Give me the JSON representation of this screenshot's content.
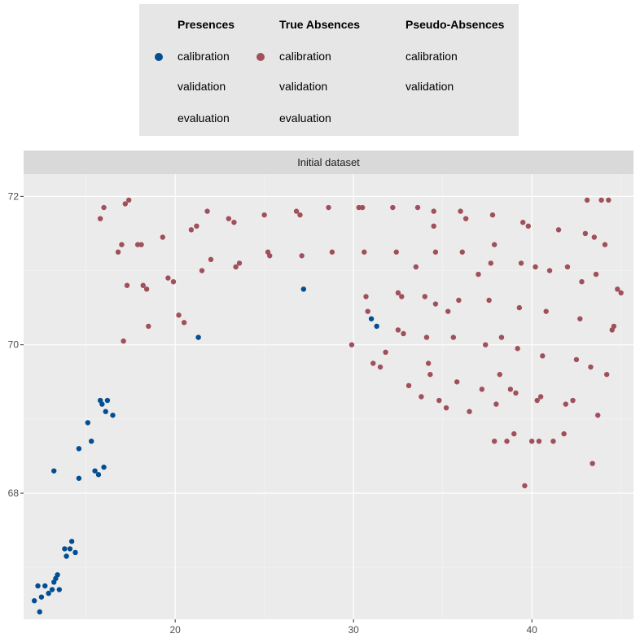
{
  "legend": {
    "groups": [
      {
        "title": "Presences",
        "labels": [
          "calibration",
          "validation",
          "evaluation"
        ],
        "key_color": "#034E91"
      },
      {
        "title": "True Absences",
        "labels": [
          "calibration",
          "validation",
          "evaluation"
        ],
        "key_color": "#A0505A"
      },
      {
        "title": "Pseudo-Absences",
        "labels": [
          "calibration",
          "validation"
        ],
        "key_color": null
      }
    ]
  },
  "chart_data": {
    "type": "scatter",
    "panel_title": "Initial dataset",
    "xlim": [
      11.5,
      45.7
    ],
    "ylim": [
      66.3,
      72.3
    ],
    "x_ticks": [
      20,
      30,
      40
    ],
    "y_ticks": [
      68,
      70,
      72
    ],
    "grid": true,
    "legend_position": "top",
    "series": [
      {
        "name": "Presences calibration",
        "color": "#034E91",
        "points": [
          [
            12.1,
            66.55
          ],
          [
            12.3,
            66.75
          ],
          [
            12.4,
            66.4
          ],
          [
            12.5,
            66.6
          ],
          [
            12.7,
            66.75
          ],
          [
            12.9,
            66.65
          ],
          [
            13.1,
            66.7
          ],
          [
            13.2,
            66.8
          ],
          [
            13.3,
            66.85
          ],
          [
            13.4,
            66.9
          ],
          [
            13.5,
            66.7
          ],
          [
            13.2,
            68.3
          ],
          [
            13.8,
            67.25
          ],
          [
            13.9,
            67.15
          ],
          [
            14.1,
            67.25
          ],
          [
            14.2,
            67.35
          ],
          [
            14.4,
            67.2
          ],
          [
            14.6,
            68.2
          ],
          [
            14.6,
            68.6
          ],
          [
            15.1,
            68.95
          ],
          [
            15.3,
            68.7
          ],
          [
            15.5,
            68.3
          ],
          [
            15.7,
            68.25
          ],
          [
            15.8,
            69.25
          ],
          [
            15.9,
            69.2
          ],
          [
            16.0,
            68.35
          ],
          [
            16.1,
            69.1
          ],
          [
            16.2,
            69.25
          ],
          [
            16.5,
            69.05
          ],
          [
            21.3,
            70.1
          ],
          [
            27.2,
            70.75
          ],
          [
            31.0,
            70.35
          ],
          [
            31.3,
            70.25
          ]
        ]
      },
      {
        "name": "True Absences calibration",
        "color": "#A0505A",
        "points": [
          [
            15.8,
            71.7
          ],
          [
            16.0,
            71.85
          ],
          [
            16.8,
            71.25
          ],
          [
            17.0,
            71.35
          ],
          [
            17.1,
            70.05
          ],
          [
            17.2,
            71.9
          ],
          [
            17.3,
            70.8
          ],
          [
            17.4,
            71.95
          ],
          [
            17.9,
            71.35
          ],
          [
            18.1,
            71.35
          ],
          [
            18.2,
            70.8
          ],
          [
            18.4,
            70.75
          ],
          [
            18.5,
            70.25
          ],
          [
            19.3,
            71.45
          ],
          [
            19.6,
            70.9
          ],
          [
            19.9,
            70.85
          ],
          [
            20.2,
            70.4
          ],
          [
            20.5,
            70.3
          ],
          [
            20.9,
            71.55
          ],
          [
            21.2,
            71.6
          ],
          [
            21.5,
            71.0
          ],
          [
            21.8,
            71.8
          ],
          [
            22.0,
            71.15
          ],
          [
            23.0,
            71.7
          ],
          [
            23.3,
            71.65
          ],
          [
            23.4,
            71.05
          ],
          [
            23.6,
            71.1
          ],
          [
            25.0,
            71.75
          ],
          [
            25.2,
            71.25
          ],
          [
            25.3,
            71.2
          ],
          [
            26.8,
            71.8
          ],
          [
            27.0,
            71.75
          ],
          [
            27.1,
            71.2
          ],
          [
            28.6,
            71.85
          ],
          [
            28.8,
            71.25
          ],
          [
            29.9,
            70.0
          ],
          [
            30.3,
            71.85
          ],
          [
            30.5,
            71.85
          ],
          [
            30.6,
            71.25
          ],
          [
            30.7,
            70.65
          ],
          [
            30.8,
            70.45
          ],
          [
            31.1,
            69.75
          ],
          [
            31.5,
            69.7
          ],
          [
            31.8,
            69.9
          ],
          [
            32.2,
            71.85
          ],
          [
            32.4,
            71.25
          ],
          [
            32.5,
            70.7
          ],
          [
            32.5,
            70.2
          ],
          [
            32.7,
            70.65
          ],
          [
            32.8,
            70.15
          ],
          [
            33.1,
            69.45
          ],
          [
            33.5,
            71.05
          ],
          [
            33.6,
            71.85
          ],
          [
            33.8,
            69.3
          ],
          [
            34.0,
            70.65
          ],
          [
            34.1,
            70.1
          ],
          [
            34.2,
            69.75
          ],
          [
            34.3,
            69.6
          ],
          [
            34.5,
            71.8
          ],
          [
            34.6,
            71.25
          ],
          [
            34.5,
            71.6
          ],
          [
            34.6,
            70.55
          ],
          [
            34.8,
            69.25
          ],
          [
            35.2,
            69.15
          ],
          [
            35.3,
            70.45
          ],
          [
            35.6,
            70.1
          ],
          [
            35.8,
            69.5
          ],
          [
            35.9,
            70.6
          ],
          [
            36.0,
            71.8
          ],
          [
            36.1,
            71.25
          ],
          [
            36.3,
            71.7
          ],
          [
            36.5,
            69.1
          ],
          [
            37.0,
            70.95
          ],
          [
            37.2,
            69.4
          ],
          [
            37.4,
            70.0
          ],
          [
            37.6,
            70.6
          ],
          [
            37.7,
            71.1
          ],
          [
            37.8,
            71.75
          ],
          [
            37.9,
            68.7
          ],
          [
            37.9,
            71.35
          ],
          [
            38.0,
            69.2
          ],
          [
            38.2,
            69.6
          ],
          [
            38.3,
            70.1
          ],
          [
            38.6,
            68.7
          ],
          [
            38.8,
            69.4
          ],
          [
            39.0,
            68.8
          ],
          [
            39.1,
            69.35
          ],
          [
            39.2,
            69.95
          ],
          [
            39.3,
            70.5
          ],
          [
            39.4,
            71.1
          ],
          [
            39.5,
            71.65
          ],
          [
            39.6,
            68.1
          ],
          [
            39.8,
            71.6
          ],
          [
            40.0,
            68.7
          ],
          [
            40.2,
            71.05
          ],
          [
            40.3,
            69.25
          ],
          [
            40.4,
            68.7
          ],
          [
            40.5,
            69.3
          ],
          [
            40.6,
            69.85
          ],
          [
            40.8,
            70.45
          ],
          [
            41.0,
            71.0
          ],
          [
            41.2,
            68.7
          ],
          [
            41.5,
            71.55
          ],
          [
            41.8,
            68.8
          ],
          [
            41.9,
            69.2
          ],
          [
            42.0,
            71.05
          ],
          [
            42.3,
            69.25
          ],
          [
            42.5,
            69.8
          ],
          [
            42.7,
            70.35
          ],
          [
            42.8,
            70.85
          ],
          [
            43.0,
            71.5
          ],
          [
            43.1,
            71.95
          ],
          [
            43.3,
            69.7
          ],
          [
            43.4,
            68.4
          ],
          [
            43.5,
            71.45
          ],
          [
            43.6,
            70.95
          ],
          [
            43.7,
            69.05
          ],
          [
            43.9,
            71.95
          ],
          [
            44.1,
            71.35
          ],
          [
            44.2,
            69.6
          ],
          [
            44.3,
            71.95
          ],
          [
            44.5,
            70.2
          ],
          [
            44.6,
            70.25
          ],
          [
            44.8,
            70.75
          ],
          [
            45.0,
            70.7
          ]
        ]
      }
    ]
  }
}
